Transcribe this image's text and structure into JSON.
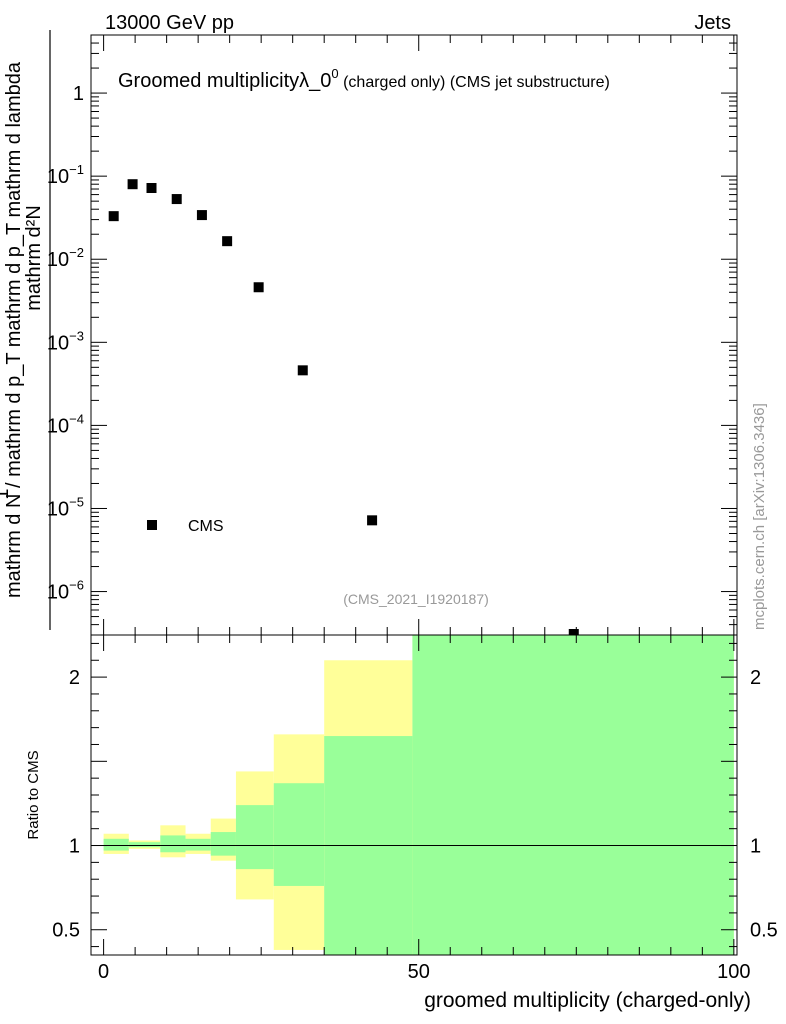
{
  "header": {
    "left": "13000 GeV pp",
    "right": "Jets"
  },
  "side_credit": "mcplots.cern.ch [arXiv:1306.3436]",
  "chart_data": [
    {
      "type": "scatter",
      "title": "Groomed multiplicity",
      "title_symbol": "λ_0",
      "title_sup": "0",
      "title_suffix": " (charged only) (CMS jet substructure)",
      "watermark": "(CMS_2021_I1920187)",
      "ylabel_numerator": "mathrm d²N",
      "ylabel_denominator": "mathrm d N / mathrm d p_T mathrm d p_T mathrm d lambda",
      "ylabel_one": "1",
      "yscale": "log",
      "ylim": [
        3e-07,
        5
      ],
      "xlim": [
        -2,
        100.5
      ],
      "y_ticks": [
        {
          "value": 1,
          "label": "1"
        },
        {
          "value": 0.1,
          "label": "10",
          "exp": "−1"
        },
        {
          "value": 0.01,
          "label": "10",
          "exp": "−2"
        },
        {
          "value": 0.001,
          "label": "10",
          "exp": "−3"
        },
        {
          "value": 0.0001,
          "label": "10",
          "exp": "−4"
        },
        {
          "value": 1e-05,
          "label": "10",
          "exp": "−5"
        },
        {
          "value": 1e-06,
          "label": "10",
          "exp": "−6"
        }
      ],
      "legend": {
        "label": "CMS",
        "placement": "bottom-left"
      },
      "series": [
        {
          "name": "CMS",
          "x": [
            1.6,
            4.6,
            7.6,
            11.6,
            15.6,
            19.6,
            24.6,
            31.6,
            42.6,
            74.6
          ],
          "y": [
            0.033,
            0.08,
            0.072,
            0.053,
            0.034,
            0.0165,
            0.0046,
            0.00046,
            7.2e-06,
            3e-07
          ]
        }
      ]
    },
    {
      "type": "area",
      "ylabel": "Ratio to CMS",
      "xlabel": "groomed multiplicity (charged-only)",
      "xlim": [
        -2,
        100.5
      ],
      "ylim": [
        0.35,
        2.25
      ],
      "x_ticks": [
        {
          "value": 0,
          "label": "0"
        },
        {
          "value": 50,
          "label": "50"
        },
        {
          "value": 100,
          "label": "100"
        }
      ],
      "y_ticks": [
        {
          "value": 0.5,
          "label": "0.5"
        },
        {
          "value": 1,
          "label": "1"
        },
        {
          "value": 2,
          "label": "2"
        }
      ],
      "reference_line": 1,
      "bins": [
        {
          "x0": 0,
          "x1": 4,
          "inner": [
            0.97,
            1.04
          ],
          "outer": [
            0.95,
            1.07
          ]
        },
        {
          "x0": 4,
          "x1": 9,
          "inner": [
            0.99,
            1.02
          ],
          "outer": [
            0.98,
            1.03
          ]
        },
        {
          "x0": 9,
          "x1": 13,
          "inner": [
            0.96,
            1.06
          ],
          "outer": [
            0.93,
            1.12
          ]
        },
        {
          "x0": 13,
          "x1": 17,
          "inner": [
            0.97,
            1.04
          ],
          "outer": [
            0.95,
            1.07
          ]
        },
        {
          "x0": 17,
          "x1": 21,
          "inner": [
            0.94,
            1.08
          ],
          "outer": [
            0.91,
            1.16
          ]
        },
        {
          "x0": 21,
          "x1": 27,
          "inner": [
            0.86,
            1.24
          ],
          "outer": [
            0.68,
            1.44
          ]
        },
        {
          "x0": 27,
          "x1": 35,
          "inner": [
            0.76,
            1.37
          ],
          "outer": [
            0.38,
            1.66
          ]
        },
        {
          "x0": 35,
          "x1": 49,
          "inner": [
            0.35,
            1.65
          ],
          "outer": [
            0.35,
            2.1
          ]
        },
        {
          "x0": 49,
          "x1": 100,
          "inner": [
            0.35,
            2.25
          ],
          "outer": [
            0.35,
            2.25
          ]
        }
      ],
      "colors": {
        "inner": "#99ff99",
        "outer": "#ffff99",
        "points": "#000000"
      }
    }
  ]
}
